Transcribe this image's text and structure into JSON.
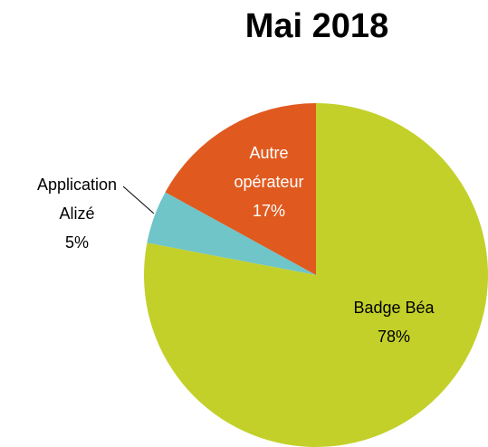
{
  "chart_data": {
    "type": "pie",
    "title": "Mai 2018",
    "categories": [
      "Badge Béa",
      "Application Alizé",
      "Autre opérateur"
    ],
    "values": [
      78,
      5,
      17
    ],
    "value_labels": [
      "78%",
      "5%",
      "17%"
    ],
    "colors": [
      "#c3d02a",
      "#6fc5c8",
      "#e05a1f"
    ]
  }
}
